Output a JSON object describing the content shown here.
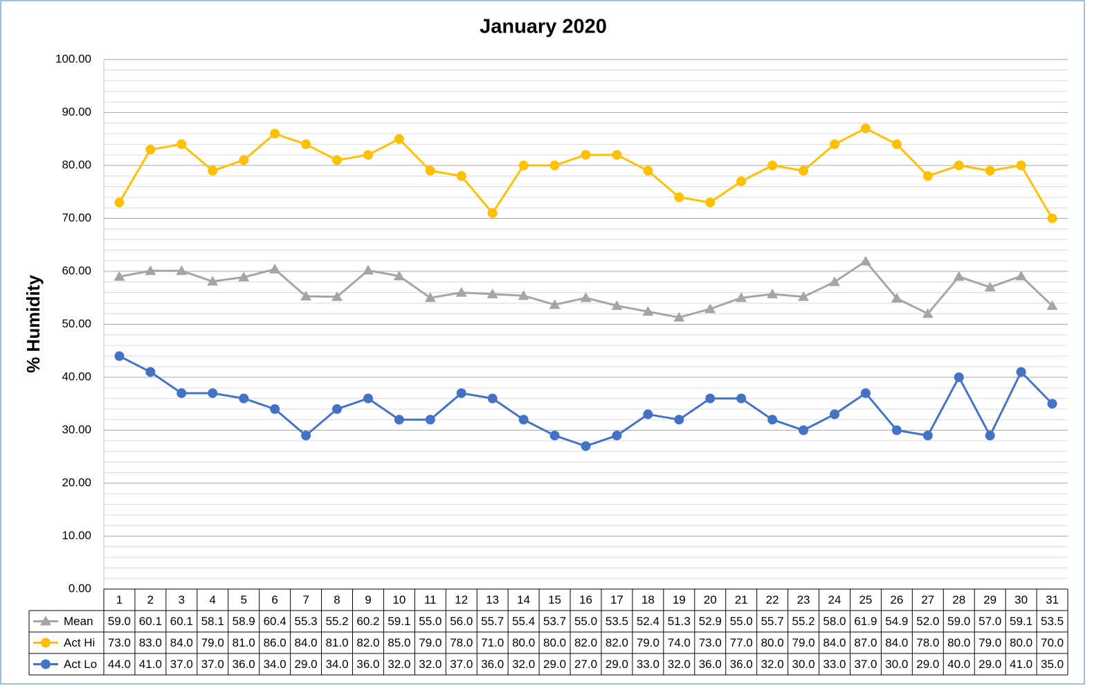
{
  "chart_data": {
    "type": "line",
    "title": "January 2020",
    "y_label": "% Humidity",
    "categories": [
      "1",
      "2",
      "3",
      "4",
      "5",
      "6",
      "7",
      "8",
      "9",
      "10",
      "11",
      "12",
      "13",
      "14",
      "15",
      "16",
      "17",
      "18",
      "19",
      "20",
      "21",
      "22",
      "23",
      "24",
      "25",
      "26",
      "27",
      "28",
      "29",
      "30",
      "31"
    ],
    "series": [
      {
        "name": "Mean",
        "color": "#a5a5a5",
        "marker": "triangle",
        "values": [
          59.0,
          60.1,
          60.1,
          58.1,
          58.9,
          60.4,
          55.3,
          55.2,
          60.2,
          59.1,
          55.0,
          56.0,
          55.7,
          55.4,
          53.7,
          55.0,
          53.5,
          52.4,
          51.3,
          52.9,
          55.0,
          55.7,
          55.2,
          58.0,
          61.9,
          54.9,
          52.0,
          59.0,
          57.0,
          59.1,
          53.5
        ],
        "value_labels": [
          "59.0",
          "60.1",
          "60.1",
          "58.1",
          "58.9",
          "60.4",
          "55.3",
          "55.2",
          "60.2",
          "59.1",
          "55.0",
          "56.0",
          "55.7",
          "55.4",
          "53.7",
          "55.0",
          "53.5",
          "52.4",
          "51.3",
          "52.9",
          "55.0",
          "55.7",
          "55.2",
          "58.0",
          "61.9",
          "54.9",
          "52.0",
          "59.0",
          "57.0",
          "59.1",
          "53.5"
        ]
      },
      {
        "name": "Act Hi",
        "color": "#ffc000",
        "marker": "circle",
        "values": [
          73,
          83,
          84,
          79,
          81,
          86,
          84,
          81,
          82,
          85,
          79,
          78,
          71,
          80,
          80,
          82,
          82,
          79,
          74,
          73,
          77,
          80,
          79,
          84,
          87,
          84,
          78,
          80,
          79,
          80,
          70
        ],
        "value_labels": [
          "73.0",
          "83.0",
          "84.0",
          "79.0",
          "81.0",
          "86.0",
          "84.0",
          "81.0",
          "82.0",
          "85.0",
          "79.0",
          "78.0",
          "71.0",
          "80.0",
          "80.0",
          "82.0",
          "82.0",
          "79.0",
          "74.0",
          "73.0",
          "77.0",
          "80.0",
          "79.0",
          "84.0",
          "87.0",
          "84.0",
          "78.0",
          "80.0",
          "79.0",
          "80.0",
          "70.0"
        ]
      },
      {
        "name": "Act Lo",
        "color": "#4472c4",
        "marker": "circle",
        "values": [
          44,
          41,
          37,
          37,
          36,
          34,
          29,
          34,
          36,
          32,
          32,
          37,
          36,
          32,
          29,
          27,
          29,
          33,
          32,
          36,
          36,
          32,
          30,
          33,
          37,
          30,
          29,
          40,
          29,
          41,
          35
        ],
        "value_labels": [
          "44.0",
          "41.0",
          "37.0",
          "37.0",
          "36.0",
          "34.0",
          "29.0",
          "34.0",
          "36.0",
          "32.0",
          "32.0",
          "37.0",
          "36.0",
          "32.0",
          "29.0",
          "27.0",
          "29.0",
          "33.0",
          "32.0",
          "36.0",
          "36.0",
          "32.0",
          "30.0",
          "33.0",
          "37.0",
          "30.0",
          "29.0",
          "40.0",
          "29.0",
          "41.0",
          "35.0"
        ]
      }
    ],
    "ylim": [
      0,
      100
    ],
    "yticks": [
      {
        "value": 0,
        "label": "0.00"
      },
      {
        "value": 10,
        "label": "10.00"
      },
      {
        "value": 20,
        "label": "20.00"
      },
      {
        "value": 30,
        "label": "30.00"
      },
      {
        "value": 40,
        "label": "40.00"
      },
      {
        "value": 50,
        "label": "50.00"
      },
      {
        "value": 60,
        "label": "60.00"
      },
      {
        "value": 70,
        "label": "70.00"
      },
      {
        "value": 80,
        "label": "80.00"
      },
      {
        "value": 90,
        "label": "90.00"
      },
      {
        "value": 100,
        "label": "100.00"
      }
    ],
    "grid": true,
    "minor_grid": true,
    "data_table": true
  }
}
